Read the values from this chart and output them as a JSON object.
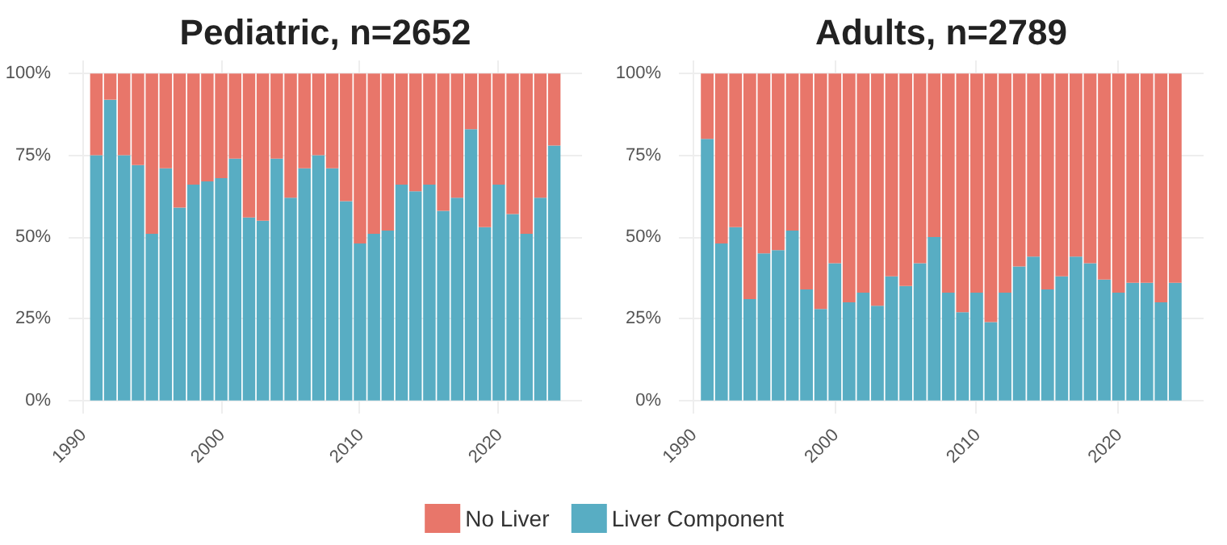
{
  "chart_data": [
    {
      "type": "bar",
      "stacked": true,
      "title": "Pediatric, n=2652",
      "x": [
        1991,
        1992,
        1993,
        1994,
        1995,
        1996,
        1997,
        1998,
        1999,
        2000,
        2001,
        2002,
        2003,
        2004,
        2005,
        2006,
        2007,
        2008,
        2009,
        2010,
        2011,
        2012,
        2013,
        2014,
        2015,
        2016,
        2017,
        2018,
        2019,
        2020,
        2021,
        2022,
        2023,
        2024
      ],
      "series": [
        {
          "name": "Liver Component",
          "color": "#58adc3",
          "values": [
            75,
            92,
            75,
            72,
            51,
            71,
            59,
            66,
            67,
            68,
            74,
            56,
            55,
            74,
            62,
            71,
            75,
            71,
            61,
            48,
            51,
            52,
            66,
            64,
            66,
            58,
            62,
            83,
            53,
            66,
            57,
            51,
            62,
            78
          ]
        },
        {
          "name": "No Liver",
          "color": "#e8766a",
          "values": [
            25,
            8,
            25,
            28,
            49,
            29,
            41,
            34,
            33,
            32,
            26,
            44,
            45,
            26,
            38,
            29,
            25,
            29,
            39,
            52,
            49,
            48,
            34,
            36,
            34,
            42,
            38,
            17,
            47,
            34,
            43,
            49,
            38,
            22
          ]
        }
      ],
      "xlim": [
        1989,
        2026
      ],
      "xticks": [
        1990,
        2000,
        2010,
        2020
      ],
      "ylim": [
        -4,
        104
      ],
      "yticks": [
        {
          "value": 0,
          "label": "0%"
        },
        {
          "value": 25,
          "label": "25%"
        },
        {
          "value": 50,
          "label": "50%"
        },
        {
          "value": 75,
          "label": "75%"
        },
        {
          "value": 100,
          "label": "100%"
        }
      ],
      "grid": true,
      "legend": "bottom"
    },
    {
      "type": "bar",
      "stacked": true,
      "title": "Adults, n=2789",
      "x": [
        1991,
        1992,
        1993,
        1994,
        1995,
        1996,
        1997,
        1998,
        1999,
        2000,
        2001,
        2002,
        2003,
        2004,
        2005,
        2006,
        2007,
        2008,
        2009,
        2010,
        2011,
        2012,
        2013,
        2014,
        2015,
        2016,
        2017,
        2018,
        2019,
        2020,
        2021,
        2022,
        2023,
        2024
      ],
      "series": [
        {
          "color": "#58adc3",
          "values": [
            80,
            48,
            53,
            31,
            45,
            46,
            52,
            34,
            28,
            42,
            30,
            33,
            29,
            38,
            35,
            42,
            50,
            33,
            27,
            33,
            24,
            33,
            41,
            44,
            34,
            38,
            44,
            42,
            37,
            33,
            36,
            36,
            30,
            36
          ]
        },
        {
          "color": "#e8766a",
          "values": [
            20,
            52,
            47,
            69,
            55,
            54,
            48,
            66,
            72,
            58,
            70,
            67,
            71,
            62,
            65,
            58,
            50,
            67,
            73,
            67,
            76,
            67,
            59,
            56,
            66,
            62,
            56,
            58,
            63,
            67,
            64,
            64,
            70,
            64
          ]
        }
      ],
      "xlim": [
        1989,
        2026
      ],
      "xticks": [
        1990,
        2000,
        2010,
        2020
      ],
      "ylim": [
        -4,
        104
      ],
      "yticks": [
        {
          "value": 0,
          "label": "0%"
        },
        {
          "value": 25,
          "label": "25%"
        },
        {
          "value": 50,
          "label": "50%"
        },
        {
          "value": 75,
          "label": "75%"
        },
        {
          "value": 100,
          "label": "100%"
        }
      ],
      "grid": true
    }
  ]
}
